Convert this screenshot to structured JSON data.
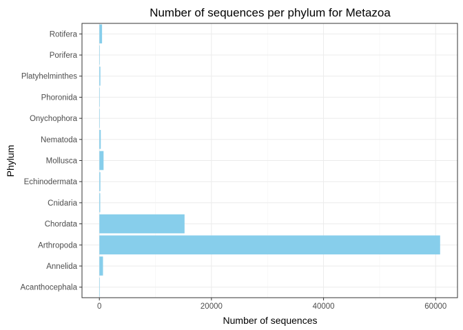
{
  "chart_data": {
    "type": "bar",
    "orientation": "horizontal",
    "title": "Number of sequences per phylum for Metazoa",
    "xlabel": "Number of sequences",
    "ylabel": "Phylum",
    "categories": [
      "Acanthocephala",
      "Annelida",
      "Arthropoda",
      "Chordata",
      "Cnidaria",
      "Echinodermata",
      "Mollusca",
      "Nematoda",
      "Onychophora",
      "Phoronida",
      "Platyhelminthes",
      "Porifera",
      "Rotifera"
    ],
    "values": [
      15,
      650,
      60800,
      15200,
      150,
      180,
      750,
      250,
      10,
      10,
      180,
      20,
      480
    ],
    "xlim": [
      -3100,
      63900
    ],
    "xticks": [
      0,
      20000,
      40000,
      60000
    ],
    "xtick_labels": [
      "0",
      "20000",
      "40000",
      "60000"
    ],
    "grid": true,
    "bar_color": "#87ceeb",
    "theme": "bw"
  }
}
